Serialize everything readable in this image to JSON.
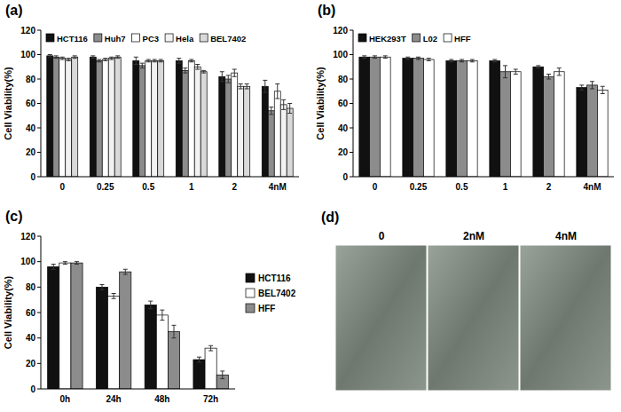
{
  "chart_data": [
    {
      "type": "bar",
      "title": "(a)",
      "ylabel": "Cell Viability(%)",
      "categories": [
        "0",
        "0.25",
        "0.5",
        "1",
        "2",
        "4nM"
      ],
      "series": [
        {
          "name": "HCT116",
          "color": "#111111",
          "values": [
            99,
            98,
            95,
            95,
            82,
            74
          ],
          "errors": [
            1,
            1,
            3,
            2,
            4,
            5
          ]
        },
        {
          "name": "Huh7",
          "color": "#8c8c8c",
          "values": [
            98,
            95,
            91,
            87,
            80,
            54
          ],
          "errors": [
            1,
            1,
            2,
            2,
            3,
            3
          ]
        },
        {
          "name": "PC3",
          "color": "#ffffff",
          "values": [
            97,
            96,
            95,
            95,
            85,
            70
          ],
          "errors": [
            1,
            1,
            1,
            1,
            3,
            6
          ]
        },
        {
          "name": "Hela",
          "color": "#f2f2f2",
          "values": [
            96,
            97,
            95,
            90,
            74,
            59
          ],
          "errors": [
            1,
            1,
            1,
            2,
            2,
            4
          ]
        },
        {
          "name": "BEL7402",
          "color": "#d9d9d9",
          "values": [
            98,
            98,
            95,
            86,
            74,
            56
          ],
          "errors": [
            1,
            1,
            1,
            1,
            2,
            4
          ]
        }
      ],
      "ylim": [
        0,
        120
      ],
      "yticks": [
        0,
        20,
        40,
        60,
        80,
        100,
        120
      ],
      "grid": false,
      "legend": "top"
    },
    {
      "type": "bar",
      "title": "(b)",
      "ylabel": "Cell Viability(%)",
      "categories": [
        "0",
        "0.25",
        "0.5",
        "1",
        "2",
        "4nM"
      ],
      "series": [
        {
          "name": "HEK293T",
          "color": "#111111",
          "values": [
            98,
            97,
            95,
            95,
            90,
            73
          ],
          "errors": [
            1,
            1,
            1,
            1,
            1,
            2
          ]
        },
        {
          "name": "L02",
          "color": "#8c8c8c",
          "values": [
            98,
            97,
            95,
            86,
            82,
            75
          ],
          "errors": [
            1,
            1,
            1,
            5,
            2,
            3
          ]
        },
        {
          "name": "HFF",
          "color": "#ffffff",
          "values": [
            98,
            96,
            95,
            86,
            86,
            71
          ],
          "errors": [
            1,
            1,
            1,
            2,
            3,
            3
          ]
        }
      ],
      "ylim": [
        0,
        120
      ],
      "yticks": [
        0,
        20,
        40,
        60,
        80,
        100,
        120
      ],
      "grid": false,
      "legend": "top"
    },
    {
      "type": "bar",
      "title": "(c)",
      "ylabel": "Cell Viability(%)",
      "categories": [
        "0h",
        "24h",
        "48h",
        "72h"
      ],
      "series": [
        {
          "name": "HCT116",
          "color": "#111111",
          "values": [
            96,
            80,
            66,
            23
          ],
          "errors": [
            2,
            2,
            3,
            2
          ]
        },
        {
          "name": "BEL7402",
          "color": "#ffffff",
          "values": [
            99,
            73,
            58,
            32
          ],
          "errors": [
            1,
            2,
            4,
            2
          ]
        },
        {
          "name": "HFF",
          "color": "#8c8c8c",
          "values": [
            99,
            92,
            45,
            11
          ],
          "errors": [
            1,
            2,
            5,
            3
          ]
        }
      ],
      "ylim": [
        0,
        120
      ],
      "yticks": [
        0,
        20,
        40,
        60,
        80,
        100,
        120
      ],
      "grid": false,
      "legend": "right"
    }
  ],
  "image_panel": {
    "title": "(d)",
    "labels": [
      "0",
      "2nM",
      "4nM"
    ]
  }
}
